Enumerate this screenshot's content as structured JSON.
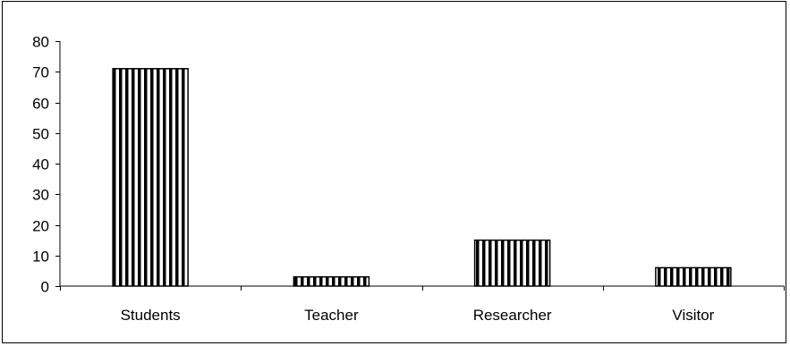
{
  "chart_data": {
    "type": "bar",
    "title": "",
    "xlabel": "",
    "ylabel": "",
    "categories": [
      "Students",
      "Teacher",
      "Researcher",
      "Visitor"
    ],
    "values": [
      71,
      3,
      15,
      6
    ],
    "ylim": [
      0,
      80
    ],
    "yticks": [
      "0",
      "10",
      "20",
      "30",
      "40",
      "50",
      "60",
      "70",
      "80"
    ],
    "grid": false,
    "legend": "none",
    "bar_fill": "vertical-stripes",
    "colors": {
      "bar_stroke": "#000000",
      "bar_stripe": "#000000",
      "bar_background": "#ffffff",
      "axis": "#000000",
      "text": "#000000",
      "frame": "#000000"
    }
  }
}
